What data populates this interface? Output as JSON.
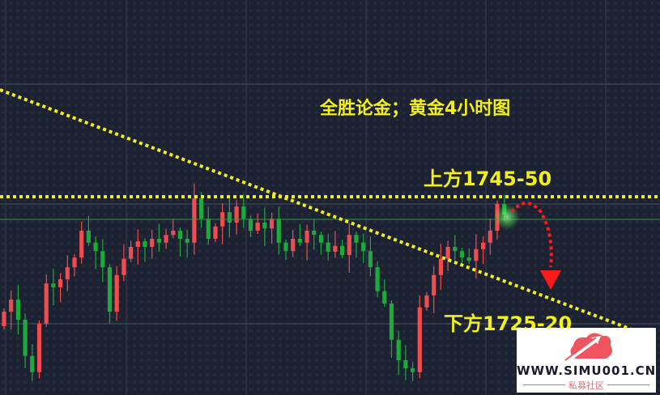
{
  "chart_data": {
    "type": "candlestick",
    "title": "全胜论金；黄金4小时图",
    "interval": "4小时",
    "colors": {
      "up": "#ef4d4d",
      "down": "#1fa83b",
      "background": "#1d2232",
      "annotation": "#f2ef1e",
      "arrow": "#ff1a1a"
    },
    "first_open": 1705.0,
    "closes": [
      1709.5,
      1713.2,
      1707,
      1695.8,
      1690.8,
      1705.8,
      1718.2,
      1717,
      1719.5,
      1723.2,
      1726.2,
      1734.5,
      1730.8,
      1728.2,
      1723.2,
      1709.5,
      1720.8,
      1725.8,
      1729.5,
      1731.2,
      1729.5,
      1732,
      1730.8,
      1733.2,
      1734.5,
      1732,
      1730.8,
      1744.5,
      1738.2,
      1732,
      1735.8,
      1740.2,
      1737,
      1742,
      1738.2,
      1734.5,
      1737,
      1735.2,
      1738.2,
      1730.8,
      1728.2,
      1732,
      1730.8,
      1734.5,
      1733.2,
      1730.8,
      1728,
      1729.8,
      1727,
      1733.2,
      1730.8,
      1728.2,
      1723.2,
      1715.8,
      1712,
      1700.8,
      1694.5,
      1692,
      1690.8,
      1710.8,
      1714.5,
      1720.8,
      1725.8,
      1729.5,
      1728.2,
      1726.2,
      1725.2,
      1728.8,
      1730.8,
      1734.5,
      1742.8,
      1739.5
    ],
    "resistance_level": 1745,
    "current_price_line": 1738,
    "trendline": {
      "from_price": 1778,
      "to_price": 1704
    },
    "annotations": {
      "title": "全胜论金；黄金4小时图",
      "upper": "上方1745-50",
      "lower": "下方1725-20"
    },
    "grid": true
  },
  "watermark": {
    "url": "WWW.SIMU001.CN",
    "subtitle": "私募社区"
  }
}
